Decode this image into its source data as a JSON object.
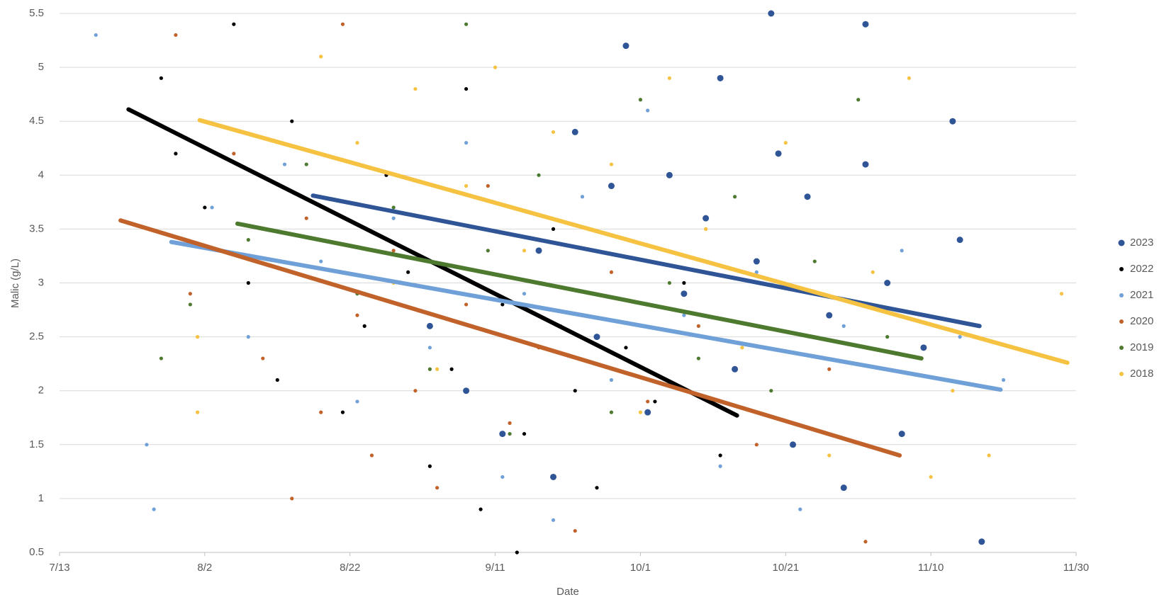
{
  "chart_data": {
    "type": "scatter",
    "x_label": "Date",
    "y_label": "Malic (g/L)",
    "xlim": [
      194,
      334
    ],
    "xticks": [
      {
        "value": 194,
        "label": "7/13"
      },
      {
        "value": 214,
        "label": "8/2"
      },
      {
        "value": 234,
        "label": "8/22"
      },
      {
        "value": 254,
        "label": "9/11"
      },
      {
        "value": 274,
        "label": "10/1"
      },
      {
        "value": 294,
        "label": "10/21"
      },
      {
        "value": 314,
        "label": "11/10"
      },
      {
        "value": 334,
        "label": "11/30"
      }
    ],
    "ylim": [
      0.5,
      5.5
    ],
    "yticks": [
      0.5,
      1,
      1.5,
      2,
      2.5,
      3,
      3.5,
      4,
      4.5,
      5,
      5.5
    ],
    "grid": true,
    "legend": "right",
    "series": [
      {
        "name": "2023",
        "color": "#2f5597",
        "x": [
          250,
          255,
          260,
          262,
          265,
          268,
          270,
          272,
          275,
          278,
          280,
          283,
          285,
          287,
          290,
          293,
          295,
          297,
          300,
          302,
          305,
          308,
          310,
          313,
          317,
          318,
          321,
          305,
          292,
          245
        ],
        "values": [
          2.0,
          1.6,
          3.3,
          1.2,
          4.4,
          2.5,
          3.9,
          5.2,
          1.8,
          4.0,
          2.9,
          3.6,
          4.9,
          2.2,
          3.2,
          4.2,
          1.5,
          3.8,
          2.7,
          1.1,
          4.1,
          3.0,
          1.6,
          2.4,
          4.5,
          3.4,
          0.6,
          5.4,
          5.5,
          2.6
        ]
      },
      {
        "name": "2022",
        "color": "#000000",
        "x": [
          208,
          210,
          214,
          218,
          220,
          224,
          226,
          230,
          233,
          236,
          239,
          242,
          245,
          248,
          250,
          252,
          255,
          258,
          262,
          265,
          268,
          272,
          276,
          280,
          285,
          257
        ],
        "values": [
          4.9,
          4.2,
          3.7,
          5.4,
          3.0,
          2.1,
          4.5,
          3.4,
          1.8,
          2.6,
          4.0,
          3.1,
          1.3,
          2.2,
          4.8,
          0.9,
          2.8,
          1.6,
          3.5,
          2.0,
          1.1,
          2.4,
          1.9,
          3.0,
          1.4,
          0.5
        ]
      },
      {
        "name": "2021",
        "color": "#6fa0d8",
        "x": [
          199,
          206,
          207,
          215,
          220,
          225,
          230,
          235,
          240,
          245,
          250,
          255,
          258,
          262,
          266,
          270,
          275,
          280,
          285,
          290,
          296,
          302,
          310,
          318,
          324
        ],
        "values": [
          5.3,
          1.5,
          0.9,
          3.7,
          2.5,
          4.1,
          3.2,
          1.9,
          3.6,
          2.4,
          4.3,
          1.2,
          2.9,
          0.8,
          3.8,
          2.1,
          4.6,
          2.7,
          1.3,
          3.1,
          0.9,
          2.6,
          3.3,
          2.5,
          2.1
        ]
      },
      {
        "name": "2020",
        "color": "#c0622a",
        "x": [
          210,
          212,
          218,
          222,
          226,
          228,
          230,
          233,
          235,
          237,
          240,
          243,
          246,
          250,
          253,
          256,
          260,
          265,
          270,
          275,
          282,
          290,
          300,
          305
        ],
        "values": [
          5.3,
          2.9,
          4.2,
          2.3,
          1.0,
          3.6,
          1.8,
          5.4,
          2.7,
          1.4,
          3.3,
          2.0,
          1.1,
          2.8,
          3.9,
          1.7,
          2.4,
          0.7,
          3.1,
          1.9,
          2.6,
          1.5,
          2.2,
          0.6
        ]
      },
      {
        "name": "2019",
        "color": "#4e7a30",
        "x": [
          208,
          212,
          220,
          228,
          235,
          240,
          245,
          250,
          253,
          256,
          260,
          263,
          267,
          270,
          274,
          278,
          282,
          287,
          292,
          298,
          304,
          308
        ],
        "values": [
          2.3,
          2.8,
          3.4,
          4.1,
          2.9,
          3.7,
          2.2,
          5.4,
          3.3,
          1.6,
          4.0,
          2.6,
          3.5,
          1.8,
          4.7,
          3.0,
          2.3,
          3.8,
          2.0,
          3.2,
          4.7,
          2.5
        ]
      },
      {
        "name": "2018",
        "color": "#f5c242",
        "x": [
          213,
          213,
          230,
          235,
          240,
          243,
          246,
          250,
          254,
          258,
          262,
          266,
          270,
          274,
          278,
          283,
          288,
          294,
          300,
          306,
          311,
          317,
          322,
          332,
          314
        ],
        "values": [
          2.5,
          1.8,
          5.1,
          4.3,
          3.0,
          4.8,
          2.2,
          3.9,
          5.0,
          3.3,
          4.4,
          2.7,
          4.1,
          1.8,
          4.9,
          3.5,
          2.4,
          4.3,
          1.4,
          3.1,
          4.9,
          2.0,
          1.4,
          2.9,
          1.2
        ]
      }
    ],
    "trendlines": [
      {
        "color": "#2f5597",
        "x": [
          228.9,
          320.7
        ],
        "values": [
          3.81,
          2.6
        ]
      },
      {
        "color": "#000000",
        "x": [
          203.5,
          287.3
        ],
        "values": [
          4.61,
          1.77
        ]
      },
      {
        "color": "#6fa0d8",
        "x": [
          209.4,
          323.6
        ],
        "values": [
          3.38,
          2.01
        ]
      },
      {
        "color": "#c0622a",
        "x": [
          202.4,
          309.7
        ],
        "values": [
          3.58,
          1.4
        ]
      },
      {
        "color": "#4e7a30",
        "x": [
          218.5,
          312.7
        ],
        "values": [
          3.55,
          2.3
        ]
      },
      {
        "color": "#f5c242",
        "x": [
          213.3,
          332.8
        ],
        "values": [
          4.51,
          2.26
        ]
      }
    ]
  }
}
